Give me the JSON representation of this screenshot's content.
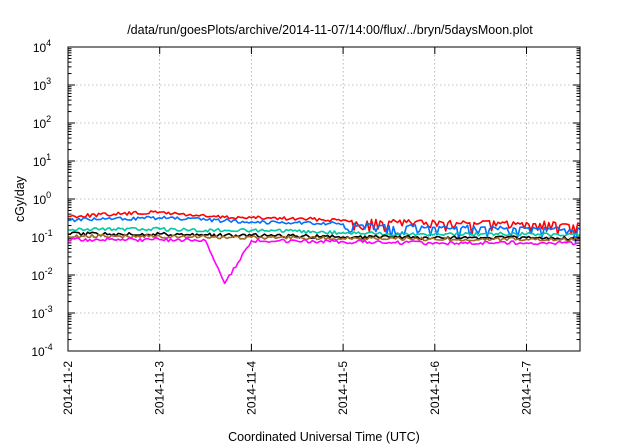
{
  "chart_data": {
    "type": "line",
    "title": "/data/run/goesPlots/archive/2014-11-07/14:00/flux/../bryn/5daysMoon.plot",
    "xlabel": "Coordinated Universal Time (UTC)",
    "ylabel": "cGy/day",
    "yscale": "log",
    "ylim": [
      0.0001,
      10000
    ],
    "yticks": [
      {
        "base": "10",
        "exp": "-4"
      },
      {
        "base": "10",
        "exp": "-3"
      },
      {
        "base": "10",
        "exp": "-2"
      },
      {
        "base": "10",
        "exp": "-1"
      },
      {
        "base": "10",
        "exp": "0"
      },
      {
        "base": "10",
        "exp": "1"
      },
      {
        "base": "10",
        "exp": "2"
      },
      {
        "base": "10",
        "exp": "3"
      },
      {
        "base": "10",
        "exp": "4"
      }
    ],
    "xlim": [
      "2014-11-02 00:00",
      "2014-11-07 14:00"
    ],
    "xticks": [
      "2014-11-2",
      "2014-11-3",
      "2014-11-4",
      "2014-11-5",
      "2014-11-6",
      "2014-11-7"
    ],
    "grid": true,
    "x": [
      "2014-11-02 00:00",
      "2014-11-02 12:00",
      "2014-11-03 00:00",
      "2014-11-03 12:00",
      "2014-11-03 17:00",
      "2014-11-04 00:00",
      "2014-11-04 12:00",
      "2014-11-05 00:00",
      "2014-11-05 12:00",
      "2014-11-06 00:00",
      "2014-11-06 12:00",
      "2014-11-07 00:00",
      "2014-11-07 14:00"
    ],
    "series": [
      {
        "color": "#ff0000",
        "values": [
          0.35,
          0.4,
          0.45,
          0.35,
          0.33,
          0.32,
          0.3,
          0.28,
          0.26,
          0.25,
          0.24,
          0.24,
          0.22
        ]
      },
      {
        "color": "#0070ff",
        "values": [
          0.28,
          0.3,
          0.32,
          0.28,
          0.27,
          0.25,
          0.24,
          0.22,
          0.2,
          0.18,
          0.18,
          0.17,
          0.16
        ]
      },
      {
        "color": "#00c8a0",
        "values": [
          0.16,
          0.16,
          0.16,
          0.15,
          0.15,
          0.15,
          0.14,
          0.13,
          0.12,
          0.12,
          0.12,
          0.12,
          0.11
        ]
      },
      {
        "color": "#000000",
        "values": [
          0.12,
          0.12,
          0.12,
          0.115,
          0.11,
          0.11,
          0.105,
          0.1,
          0.1,
          0.095,
          0.095,
          0.095,
          0.09
        ]
      },
      {
        "color": "#a06a20",
        "values": [
          0.105,
          0.105,
          0.105,
          0.1,
          0.1,
          0.098,
          0.095,
          0.092,
          0.09,
          0.088,
          0.088,
          0.087,
          0.085
        ]
      },
      {
        "color": "#ff00ff",
        "values": [
          0.085,
          0.085,
          0.085,
          0.08,
          0.006,
          0.08,
          0.078,
          0.075,
          0.072,
          0.07,
          0.07,
          0.07,
          0.068
        ]
      }
    ]
  }
}
